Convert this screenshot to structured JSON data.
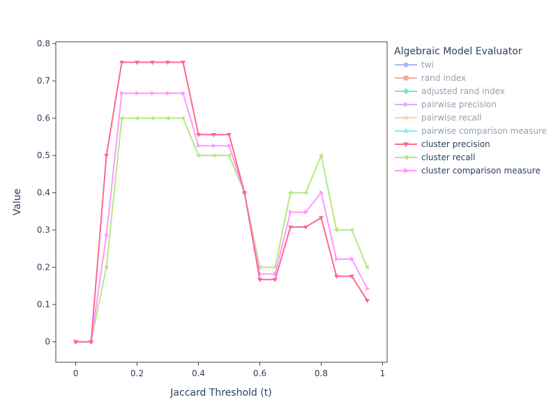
{
  "chart_data": {
    "type": "line",
    "title": "",
    "xlabel": "Jaccard Threshold (t)",
    "ylabel": "Value",
    "xlim": [
      -0.065,
      1.015
    ],
    "ylim": [
      -0.055,
      0.805
    ],
    "xticks": [
      0,
      0.2,
      0.4,
      0.6,
      0.8,
      1
    ],
    "xtick_labels": [
      "0",
      "0.2",
      "0.4",
      "0.6",
      "0.8",
      "1"
    ],
    "yticks": [
      0,
      0.1,
      0.2,
      0.3,
      0.4,
      0.5,
      0.6,
      0.7,
      0.8
    ],
    "ytick_labels": [
      "0",
      "0.1",
      "0.2",
      "0.3",
      "0.4",
      "0.5",
      "0.6",
      "0.7",
      "0.8"
    ],
    "grid": false,
    "legend": {
      "title": "Algebraic Model Evaluator",
      "position": "right",
      "items": [
        {
          "name": "twi",
          "color": "#636efa",
          "symbol": "circle",
          "visible": false
        },
        {
          "name": "rand index",
          "color": "#EF553B",
          "symbol": "square",
          "visible": false
        },
        {
          "name": "adjusted rand index",
          "color": "#00cc96",
          "symbol": "diamond",
          "visible": false
        },
        {
          "name": "pairwise precision",
          "color": "#ab63fa",
          "symbol": "triangle-right",
          "visible": false
        },
        {
          "name": "pairwise recall",
          "color": "#FFA15A",
          "symbol": "x",
          "visible": false
        },
        {
          "name": "pairwise comparison measure",
          "color": "#19d3f3",
          "symbol": "triangle-up",
          "visible": false
        },
        {
          "name": "cluster precision",
          "color": "#FF6692",
          "symbol": "triangle-down",
          "visible": true
        },
        {
          "name": "cluster recall",
          "color": "#B6E880",
          "symbol": "triangle-left",
          "visible": true
        },
        {
          "name": "cluster comparison measure",
          "color": "#FF97FF",
          "symbol": "triangle-right",
          "visible": true
        }
      ]
    },
    "x": [
      0,
      0.05,
      0.1,
      0.15,
      0.2,
      0.25,
      0.3,
      0.35,
      0.4,
      0.45,
      0.5,
      0.55,
      0.6,
      0.65,
      0.7,
      0.75,
      0.8,
      0.85,
      0.9,
      0.95
    ],
    "series": [
      {
        "name": "cluster recall",
        "color": "#B6E880",
        "symbol": "triangle-left",
        "values": [
          0,
          0,
          0.2,
          0.6,
          0.6,
          0.6,
          0.6,
          0.6,
          0.5,
          0.5,
          0.5,
          0.4,
          0.2,
          0.2,
          0.4,
          0.4,
          0.5,
          0.3,
          0.3,
          0.2
        ]
      },
      {
        "name": "cluster comparison measure",
        "color": "#FF97FF",
        "symbol": "triangle-right",
        "values": [
          0,
          0,
          0.286,
          0.667,
          0.667,
          0.667,
          0.667,
          0.667,
          0.526,
          0.526,
          0.526,
          0.4,
          0.182,
          0.182,
          0.348,
          0.348,
          0.4,
          0.222,
          0.222,
          0.143
        ]
      },
      {
        "name": "cluster precision",
        "color": "#FF6692",
        "symbol": "triangle-down",
        "values": [
          0,
          0,
          0.5,
          0.75,
          0.75,
          0.75,
          0.75,
          0.75,
          0.556,
          0.556,
          0.556,
          0.4,
          0.167,
          0.167,
          0.308,
          0.308,
          0.333,
          0.176,
          0.176,
          0.111
        ]
      }
    ]
  }
}
